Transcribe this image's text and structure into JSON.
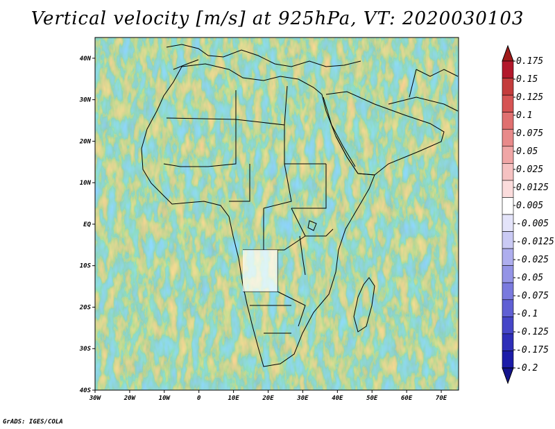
{
  "title": "Vertical velocity [m/s] at 925hPa, VT: 2020030103",
  "credit": "GrADS: IGES/COLA",
  "map": {
    "lat_ticks": [
      "40N",
      "30N",
      "20N",
      "10N",
      "EQ",
      "10S",
      "20S",
      "30S",
      "40S"
    ],
    "lon_ticks": [
      "30W",
      "20W",
      "10W",
      "0",
      "10E",
      "20E",
      "30E",
      "40E",
      "50E",
      "60E",
      "70E"
    ],
    "lon_range": [
      -30,
      75
    ],
    "lat_range": [
      -40,
      45
    ]
  },
  "colorbar": {
    "labels": [
      "0.175",
      "0.15",
      "0.125",
      "0.1",
      "0.075",
      "0.05",
      "0.025",
      "0.0125",
      "0.005",
      "-0.005",
      "-0.0125",
      "-0.025",
      "-0.05",
      "-0.075",
      "-0.1",
      "-0.125",
      "-0.175",
      "-0.2"
    ],
    "colors": [
      "#b2182b",
      "#c43c3c",
      "#d65454",
      "#e07070",
      "#e88a8a",
      "#f0a6a6",
      "#f6c2c2",
      "#fbdcdc",
      "#ffffff",
      "#e4e4fa",
      "#cacaf4",
      "#aeaeee",
      "#9494e6",
      "#7a7ade",
      "#6060d4",
      "#4646c8",
      "#2e2eb8",
      "#1c1ca8"
    ],
    "top_arrow_color": "#a01a1a",
    "bottom_arrow_color": "#14148c"
  }
}
